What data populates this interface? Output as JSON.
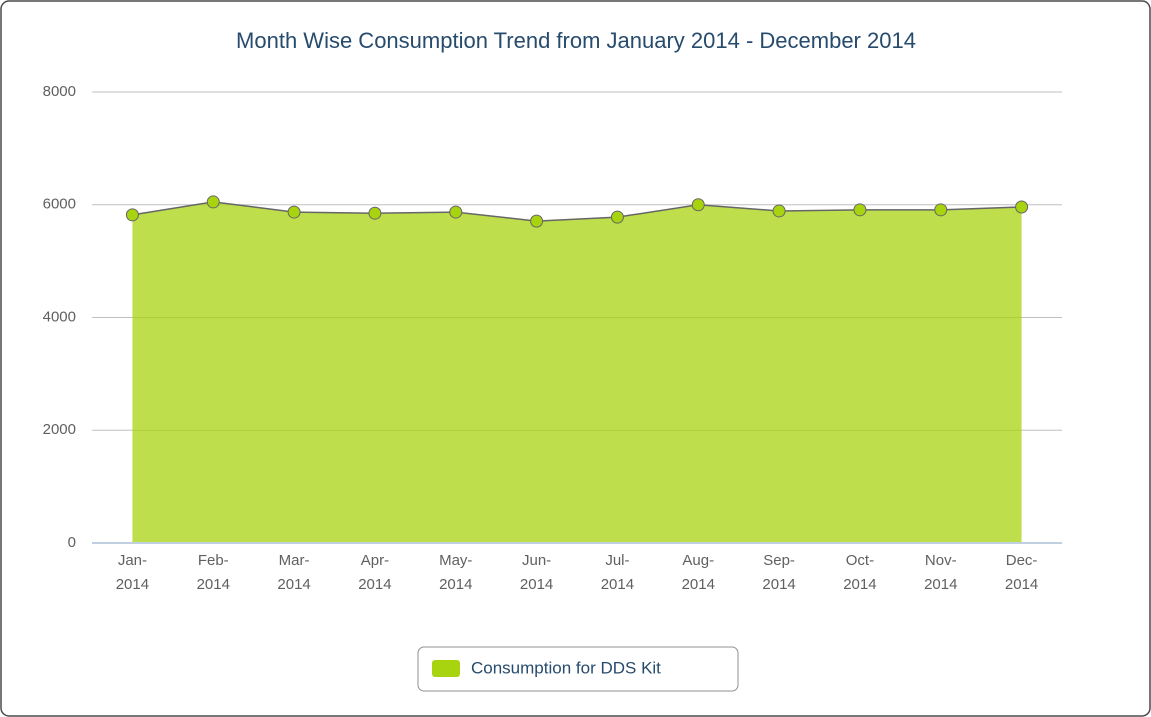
{
  "chart_data": {
    "type": "area",
    "title": "Month Wise Consumption Trend from January 2014 - December 2014",
    "categories": [
      "Jan-2014",
      "Feb-2014",
      "Mar-2014",
      "Apr-2014",
      "May-2014",
      "Jun-2014",
      "Jul-2014",
      "Aug-2014",
      "Sep-2014",
      "Oct-2014",
      "Nov-2014",
      "Dec-2014"
    ],
    "series": [
      {
        "name": "Consumption for DDS Kit",
        "color": "#a8d40f",
        "values": [
          5820,
          6050,
          5870,
          5850,
          5870,
          5710,
          5780,
          6000,
          5890,
          5910,
          5910,
          5960
        ]
      }
    ],
    "ylim": [
      0,
      8000
    ],
    "yticks": [
      0,
      2000,
      4000,
      6000,
      8000
    ],
    "grid": true,
    "legend": "bottom"
  }
}
